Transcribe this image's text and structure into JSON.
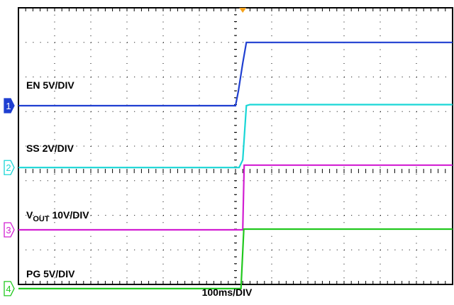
{
  "chart_data": {
    "type": "line",
    "title": "",
    "xlabel": "100ms/DIV",
    "x_divisions": 12,
    "y_divisions": 8,
    "grid": true,
    "trigger_marker_division": 6.2,
    "series": [
      {
        "name": "EN 5V/DIV",
        "channel": "1",
        "color": "#1f3fd1",
        "points": [
          [
            0,
            5.17
          ],
          [
            6.0,
            5.17
          ],
          [
            6.08,
            5.6
          ],
          [
            6.2,
            6.4
          ],
          [
            6.3,
            7.0
          ],
          [
            12,
            7.0
          ]
        ]
      },
      {
        "name": "SS 2V/DIV",
        "channel": "2",
        "color": "#19d6d6",
        "points": [
          [
            0,
            3.38
          ],
          [
            6.1,
            3.38
          ],
          [
            6.2,
            3.6
          ],
          [
            6.3,
            5.17
          ],
          [
            6.4,
            5.2
          ],
          [
            12,
            5.2
          ]
        ]
      },
      {
        "name": "VOUT 10V/DIV",
        "label_parts": {
          "main": "V",
          "sub": "OUT",
          "rest": " 10V/DIV"
        },
        "channel": "3",
        "color": "#d21ed2",
        "points": [
          [
            0,
            1.58
          ],
          [
            6.2,
            1.58
          ],
          [
            6.24,
            3.45
          ],
          [
            12,
            3.45
          ]
        ]
      },
      {
        "name": "PG 5V/DIV",
        "channel": "4",
        "color": "#21c81e",
        "points": [
          [
            0,
            -0.12
          ],
          [
            6.15,
            -0.12
          ],
          [
            6.23,
            1.6
          ],
          [
            12,
            1.6
          ]
        ]
      }
    ]
  }
}
